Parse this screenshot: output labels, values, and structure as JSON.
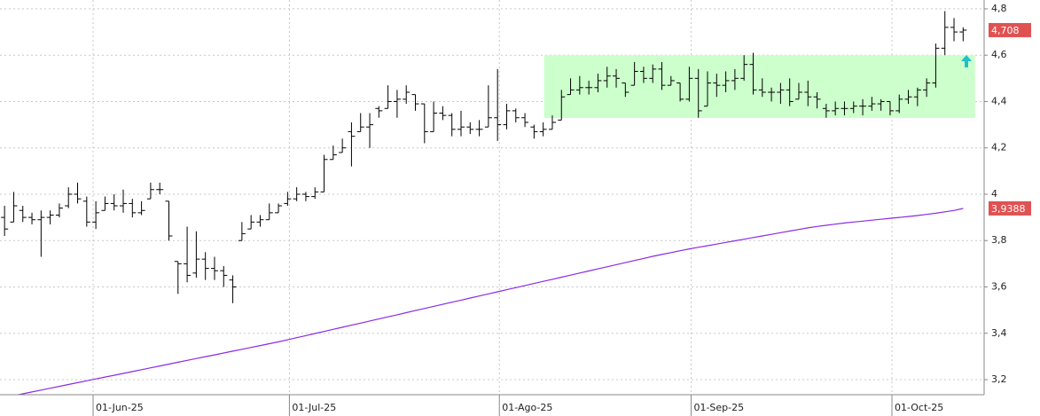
{
  "chart_data": {
    "type": "ohlc",
    "xlim": [
      -0.5,
      107.3
    ],
    "ylim": [
      3.135,
      4.838
    ],
    "grid": true,
    "xticks": [
      {
        "value": 9.7,
        "label": "01-Jun-25"
      },
      {
        "value": 31.2,
        "label": "01-Jul-25"
      },
      {
        "value": 54.2,
        "label": "01-Ago-25"
      },
      {
        "value": 75.2,
        "label": "01-Sep-25"
      },
      {
        "value": 97.2,
        "label": "01-Oct-25"
      }
    ],
    "yticks": [
      {
        "value": 3.2,
        "label": "3,2"
      },
      {
        "value": 3.4,
        "label": "3,4"
      },
      {
        "value": 3.6,
        "label": "3,6"
      },
      {
        "value": 3.8,
        "label": "3,8"
      },
      4,
      {
        "value": 4.2,
        "label": "4,2"
      },
      {
        "value": 4.4,
        "label": "4,4"
      },
      {
        "value": 4.6,
        "label": "4,6"
      },
      {
        "value": 4.8,
        "label": "4,8"
      }
    ],
    "zone": {
      "x": [
        59.1,
        106.3
      ],
      "y": [
        4.329,
        4.6
      ],
      "color": "#ccffcc"
    },
    "ohlc": {
      "color": "#000000",
      "label_color": "#e05252",
      "last_label": "4,708",
      "open": [
        3.9,
        3.88,
        3.93,
        3.9,
        3.89,
        3.9,
        3.91,
        3.95,
        4.0,
        3.97,
        3.88,
        3.93,
        3.96,
        3.95,
        3.96,
        3.92,
        3.98,
        4.02,
        3.97,
        3.71,
        3.7,
        3.66,
        3.72,
        3.68,
        3.67,
        3.63,
        3.8,
        3.85,
        3.88,
        3.89,
        3.92,
        3.96,
        3.98,
        4.0,
        3.99,
        4.01,
        4.15,
        4.18,
        4.27,
        4.27,
        4.29,
        4.37,
        4.37,
        4.4,
        4.41,
        4.43,
        4.39,
        4.27,
        4.35,
        4.34,
        4.28,
        4.29,
        4.28,
        4.29,
        4.33,
        4.3,
        4.36,
        4.33,
        4.29,
        4.27,
        4.28,
        4.32,
        4.43,
        4.45,
        4.46,
        4.46,
        4.49,
        4.51,
        4.48,
        4.47,
        4.53,
        4.5,
        4.54,
        4.47,
        4.48,
        4.41,
        4.5,
        4.38,
        4.48,
        4.47,
        4.49,
        4.5,
        4.56,
        4.45,
        4.44,
        4.44,
        4.45,
        4.41,
        4.44,
        4.42,
        4.37,
        4.36,
        4.37,
        4.37,
        4.38,
        4.38,
        4.39,
        4.4,
        4.36,
        4.41,
        4.42,
        4.45,
        4.48,
        4.63,
        4.72,
        4.7
      ],
      "high": [
        3.95,
        4.01,
        3.95,
        3.92,
        3.93,
        3.93,
        3.96,
        4.03,
        4.05,
        3.99,
        3.97,
        3.99,
        4.0,
        4.02,
        3.98,
        3.97,
        4.05,
        4.05,
        3.97,
        3.71,
        3.86,
        3.84,
        3.75,
        3.73,
        3.69,
        3.65,
        3.88,
        3.91,
        3.91,
        3.96,
        3.96,
        4.01,
        4.03,
        4.01,
        4.03,
        4.17,
        4.21,
        4.24,
        4.31,
        4.35,
        4.35,
        4.38,
        4.47,
        4.45,
        4.47,
        4.43,
        4.39,
        4.4,
        4.38,
        4.35,
        4.36,
        4.31,
        4.32,
        4.47,
        4.54,
        4.39,
        4.37,
        4.35,
        4.3,
        4.31,
        4.34,
        4.45,
        4.5,
        4.51,
        4.49,
        4.52,
        4.55,
        4.54,
        4.48,
        4.57,
        4.55,
        4.56,
        4.57,
        4.51,
        4.48,
        4.55,
        4.54,
        4.53,
        4.52,
        4.53,
        4.54,
        4.6,
        4.61,
        4.5,
        4.46,
        4.48,
        4.5,
        4.48,
        4.49,
        4.44,
        4.39,
        4.4,
        4.4,
        4.4,
        4.41,
        4.42,
        4.41,
        4.4,
        4.43,
        4.45,
        4.46,
        4.5,
        4.65,
        4.79,
        4.76,
        4.72
      ],
      "low": [
        3.82,
        3.88,
        3.88,
        3.87,
        3.73,
        3.87,
        3.9,
        3.94,
        3.96,
        3.86,
        3.85,
        3.93,
        3.93,
        3.92,
        3.9,
        3.91,
        3.98,
        4.0,
        3.8,
        3.57,
        3.62,
        3.64,
        3.63,
        3.63,
        3.6,
        3.53,
        3.8,
        3.85,
        3.86,
        3.89,
        3.92,
        3.95,
        3.97,
        3.97,
        3.98,
        4.01,
        4.15,
        4.18,
        4.12,
        4.27,
        4.2,
        4.33,
        4.37,
        4.33,
        4.39,
        4.36,
        4.22,
        4.27,
        4.32,
        4.25,
        4.25,
        4.26,
        4.25,
        4.29,
        4.23,
        4.28,
        4.31,
        4.29,
        4.24,
        4.25,
        4.28,
        4.32,
        4.43,
        4.43,
        4.43,
        4.44,
        4.46,
        4.46,
        4.42,
        4.47,
        4.48,
        4.48,
        4.45,
        4.47,
        4.4,
        4.4,
        4.33,
        4.38,
        4.42,
        4.44,
        4.45,
        4.49,
        4.43,
        4.42,
        4.4,
        4.39,
        4.38,
        4.41,
        4.38,
        4.37,
        4.33,
        4.34,
        4.34,
        4.35,
        4.34,
        4.36,
        4.36,
        4.34,
        4.35,
        4.39,
        4.38,
        4.42,
        4.46,
        4.6,
        4.66,
        4.66
      ],
      "close": [
        3.85,
        3.95,
        3.9,
        3.89,
        3.9,
        3.91,
        3.94,
        4.0,
        3.98,
        3.88,
        3.92,
        3.96,
        3.95,
        3.96,
        3.92,
        3.93,
        4.02,
        4.02,
        3.82,
        3.7,
        3.65,
        3.72,
        3.68,
        3.67,
        3.65,
        3.6,
        3.83,
        3.88,
        3.89,
        3.92,
        3.95,
        3.98,
        4.0,
        3.99,
        4.01,
        4.15,
        4.17,
        4.2,
        4.25,
        4.29,
        4.3,
        4.36,
        4.4,
        4.41,
        4.44,
        4.39,
        4.27,
        4.35,
        4.34,
        4.28,
        4.29,
        4.28,
        4.28,
        4.33,
        4.3,
        4.36,
        4.33,
        4.31,
        4.27,
        4.28,
        4.31,
        4.42,
        4.45,
        4.46,
        4.46,
        4.49,
        4.51,
        4.5,
        4.44,
        4.53,
        4.5,
        4.54,
        4.47,
        4.49,
        4.41,
        4.5,
        4.36,
        4.48,
        4.47,
        4.49,
        4.5,
        4.56,
        4.45,
        4.44,
        4.44,
        4.45,
        4.4,
        4.44,
        4.42,
        4.41,
        4.36,
        4.37,
        4.37,
        4.38,
        4.38,
        4.39,
        4.4,
        4.36,
        4.41,
        4.42,
        4.45,
        4.48,
        4.63,
        4.72,
        4.7,
        4.708
      ]
    },
    "moving_average": {
      "color": "#8a2be2",
      "label_color": "#e05252",
      "last_label": "3,9388",
      "values": [
        3.123,
        3.131,
        3.139,
        3.147,
        3.155,
        3.163,
        3.171,
        3.179,
        3.187,
        3.195,
        3.203,
        3.211,
        3.219,
        3.227,
        3.235,
        3.243,
        3.251,
        3.259,
        3.267,
        3.275,
        3.283,
        3.291,
        3.299,
        3.307,
        3.315,
        3.323,
        3.331,
        3.339,
        3.347,
        3.355,
        3.363,
        3.372,
        3.381,
        3.39,
        3.399,
        3.408,
        3.417,
        3.426,
        3.435,
        3.444,
        3.453,
        3.462,
        3.471,
        3.48,
        3.489,
        3.498,
        3.507,
        3.516,
        3.525,
        3.534,
        3.543,
        3.552,
        3.561,
        3.57,
        3.579,
        3.588,
        3.597,
        3.606,
        3.615,
        3.624,
        3.633,
        3.642,
        3.651,
        3.66,
        3.669,
        3.678,
        3.687,
        3.696,
        3.705,
        3.714,
        3.723,
        3.732,
        3.74,
        3.748,
        3.756,
        3.764,
        3.771,
        3.778,
        3.785,
        3.792,
        3.799,
        3.806,
        3.813,
        3.82,
        3.827,
        3.834,
        3.841,
        3.848,
        3.855,
        3.861,
        3.866,
        3.871,
        3.876,
        3.88,
        3.884,
        3.888,
        3.892,
        3.896,
        3.9,
        3.904,
        3.908,
        3.913,
        3.918,
        3.924,
        3.93,
        3.9388
      ]
    }
  }
}
